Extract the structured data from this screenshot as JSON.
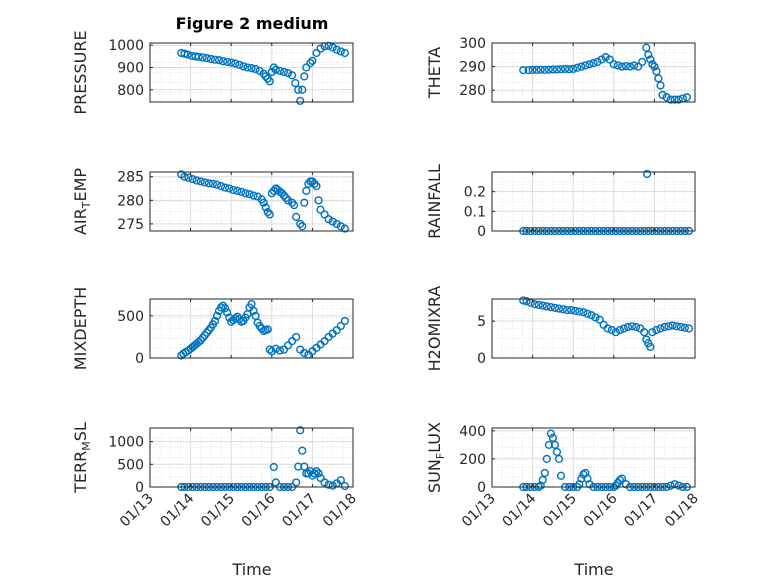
{
  "figure": {
    "title": "Figure 2 medium",
    "x_axis_label": "Time",
    "marker_color": "#0072BD"
  },
  "chart_data": [
    {
      "type": "scatter",
      "ylabel": "PRESSURE",
      "xticks": [
        "01/13",
        "01/14",
        "01/15",
        "01/16",
        "01/17",
        "01/18"
      ],
      "xlim": [
        13,
        18
      ],
      "ylim": [
        745,
        1010
      ],
      "yticks": [
        800,
        900,
        1000
      ],
      "grid": true,
      "x": [
        13.77,
        13.85,
        13.93,
        14.03,
        14.12,
        14.2,
        14.3,
        14.4,
        14.5,
        14.6,
        14.7,
        14.8,
        14.9,
        15.0,
        15.1,
        15.2,
        15.3,
        15.4,
        15.5,
        15.6,
        15.7,
        15.8,
        15.85,
        15.9,
        15.95,
        16.0,
        16.05,
        16.1,
        16.2,
        16.3,
        16.4,
        16.5,
        16.58,
        16.65,
        16.7,
        16.75,
        16.8,
        16.85,
        16.95,
        17.0,
        17.1,
        17.2,
        17.3,
        17.4,
        17.5,
        17.6,
        17.7,
        17.8
      ],
      "y": [
        965,
        962,
        958,
        952,
        950,
        948,
        945,
        942,
        938,
        935,
        933,
        928,
        925,
        922,
        918,
        912,
        905,
        900,
        897,
        893,
        885,
        872,
        860,
        850,
        838,
        880,
        900,
        890,
        885,
        880,
        875,
        865,
        830,
        800,
        750,
        800,
        860,
        900,
        920,
        930,
        965,
        985,
        995,
        997,
        990,
        980,
        972,
        965
      ]
    },
    {
      "type": "scatter",
      "ylabel": "THETA",
      "xticks": [
        "01/13",
        "01/14",
        "01/15",
        "01/16",
        "01/17",
        "01/18"
      ],
      "xlim": [
        13,
        18
      ],
      "ylim": [
        275,
        300
      ],
      "yticks": [
        280,
        290,
        300
      ],
      "grid": true,
      "x": [
        13.77,
        13.9,
        14.0,
        14.1,
        14.2,
        14.3,
        14.4,
        14.5,
        14.6,
        14.7,
        14.8,
        14.9,
        15.0,
        15.1,
        15.2,
        15.3,
        15.4,
        15.5,
        15.6,
        15.7,
        15.8,
        15.9,
        16.0,
        16.1,
        16.2,
        16.3,
        16.4,
        16.5,
        16.6,
        16.7,
        16.8,
        16.85,
        16.9,
        16.95,
        17.0,
        17.05,
        17.1,
        17.15,
        17.2,
        17.3,
        17.4,
        17.5,
        17.6,
        17.7,
        17.8
      ],
      "y": [
        288.5,
        288.5,
        288.6,
        288.6,
        288.7,
        288.6,
        288.7,
        288.8,
        288.8,
        288.9,
        289,
        288.9,
        289,
        289.5,
        290,
        290.5,
        291,
        291.5,
        292,
        293,
        294,
        293,
        291,
        290.5,
        290,
        290.2,
        290,
        290.5,
        290,
        292,
        298,
        295,
        293,
        291,
        290,
        288,
        285,
        282,
        278,
        277,
        276,
        276,
        276,
        276.5,
        277
      ]
    },
    {
      "type": "scatter",
      "ylabel": "AIR_TEMP",
      "xticks": [
        "01/13",
        "01/14",
        "01/15",
        "01/16",
        "01/17",
        "01/18"
      ],
      "xlim": [
        13,
        18
      ],
      "ylim": [
        273.5,
        286
      ],
      "yticks": [
        275,
        280,
        285
      ],
      "grid": true,
      "x": [
        13.77,
        13.85,
        13.95,
        14.05,
        14.15,
        14.25,
        14.35,
        14.45,
        14.55,
        14.65,
        14.75,
        14.85,
        14.95,
        15.05,
        15.15,
        15.25,
        15.35,
        15.45,
        15.55,
        15.65,
        15.75,
        15.8,
        15.85,
        15.9,
        15.95,
        16.0,
        16.05,
        16.1,
        16.15,
        16.2,
        16.25,
        16.3,
        16.35,
        16.4,
        16.5,
        16.55,
        16.6,
        16.7,
        16.75,
        16.8,
        16.85,
        16.9,
        16.95,
        17.0,
        17.05,
        17.1,
        17.15,
        17.2,
        17.3,
        17.4,
        17.5,
        17.6,
        17.7,
        17.8
      ],
      "y": [
        285.5,
        285,
        284.8,
        284.5,
        284.2,
        284.0,
        283.8,
        283.6,
        283.5,
        283.3,
        283.0,
        282.7,
        282.5,
        282.2,
        282.0,
        281.8,
        281.5,
        281.3,
        281.0,
        280.8,
        280.2,
        279.5,
        278.5,
        277.5,
        277.0,
        281.5,
        282.0,
        282.5,
        282.2,
        281.8,
        281.5,
        281.0,
        280.5,
        280.0,
        279.5,
        279.0,
        276.5,
        275.0,
        274.5,
        279.5,
        282.0,
        283.5,
        284.0,
        284.0,
        283.5,
        283.0,
        280.0,
        278.0,
        277.0,
        276.0,
        275.5,
        275.0,
        274.5,
        274.0
      ]
    },
    {
      "type": "scatter",
      "ylabel": "RAINFALL",
      "xticks": [
        "01/13",
        "01/14",
        "01/15",
        "01/16",
        "01/17",
        "01/18"
      ],
      "xlim": [
        13,
        18
      ],
      "ylim": [
        0,
        0.3
      ],
      "yticks": [
        0,
        0.1,
        0.2
      ],
      "grid": true,
      "x": [
        13.77,
        13.85,
        13.95,
        14.05,
        14.15,
        14.25,
        14.35,
        14.45,
        14.55,
        14.65,
        14.75,
        14.85,
        14.95,
        15.05,
        15.15,
        15.25,
        15.35,
        15.45,
        15.55,
        15.65,
        15.75,
        15.85,
        15.95,
        16.05,
        16.15,
        16.25,
        16.35,
        16.45,
        16.55,
        16.65,
        16.75,
        16.85,
        16.95,
        17.05,
        17.15,
        17.25,
        17.35,
        17.45,
        17.55,
        17.65,
        17.75,
        17.85,
        16.82
      ],
      "y": [
        0,
        0,
        0,
        0,
        0,
        0,
        0,
        0,
        0,
        0,
        0,
        0,
        0,
        0,
        0,
        0,
        0,
        0,
        0,
        0,
        0,
        0,
        0,
        0,
        0,
        0,
        0,
        0,
        0,
        0,
        0,
        0,
        0,
        0,
        0,
        0,
        0,
        0,
        0,
        0,
        0,
        0,
        0.29
      ]
    },
    {
      "type": "scatter",
      "ylabel": "MIXDEPTH",
      "xticks": [
        "01/13",
        "01/14",
        "01/15",
        "01/16",
        "01/17",
        "01/18"
      ],
      "xlim": [
        13,
        18
      ],
      "ylim": [
        0,
        700
      ],
      "yticks": [
        0,
        500
      ],
      "grid": true,
      "x": [
        13.77,
        13.82,
        13.88,
        13.95,
        14.0,
        14.05,
        14.1,
        14.15,
        14.2,
        14.25,
        14.3,
        14.35,
        14.4,
        14.45,
        14.5,
        14.55,
        14.6,
        14.65,
        14.7,
        14.75,
        14.8,
        14.85,
        14.9,
        14.95,
        15.0,
        15.05,
        15.1,
        15.15,
        15.2,
        15.25,
        15.3,
        15.35,
        15.4,
        15.45,
        15.5,
        15.55,
        15.6,
        15.65,
        15.7,
        15.75,
        15.8,
        15.85,
        15.9,
        15.95,
        16.0,
        16.1,
        16.2,
        16.3,
        16.4,
        16.5,
        16.6,
        16.7,
        16.8,
        16.9,
        17.0,
        17.1,
        17.2,
        17.3,
        17.4,
        17.5,
        17.6,
        17.7,
        17.8
      ],
      "y": [
        30,
        50,
        70,
        90,
        110,
        130,
        150,
        170,
        190,
        210,
        240,
        270,
        300,
        330,
        360,
        400,
        440,
        500,
        560,
        600,
        620,
        590,
        540,
        480,
        430,
        450,
        470,
        490,
        460,
        430,
        440,
        480,
        520,
        600,
        640,
        560,
        500,
        420,
        380,
        350,
        320,
        330,
        340,
        100,
        80,
        110,
        90,
        100,
        150,
        200,
        250,
        100,
        60,
        40,
        80,
        120,
        160,
        200,
        250,
        290,
        330,
        380,
        440
      ]
    },
    {
      "type": "scatter",
      "ylabel": "H2OMIXRA",
      "xticks": [
        "01/13",
        "01/14",
        "01/15",
        "01/16",
        "01/17",
        "01/18"
      ],
      "xlim": [
        13,
        18
      ],
      "ylim": [
        0,
        8
      ],
      "yticks": [
        0,
        5
      ],
      "grid": true,
      "x": [
        13.77,
        13.85,
        13.95,
        14.05,
        14.15,
        14.25,
        14.35,
        14.45,
        14.55,
        14.65,
        14.75,
        14.85,
        14.95,
        15.05,
        15.15,
        15.25,
        15.35,
        15.45,
        15.55,
        15.65,
        15.75,
        15.85,
        15.95,
        16.05,
        16.15,
        16.25,
        16.35,
        16.45,
        16.55,
        16.65,
        16.75,
        16.8,
        16.85,
        16.9,
        16.95,
        17.05,
        17.15,
        17.25,
        17.35,
        17.45,
        17.55,
        17.65,
        17.75,
        17.85
      ],
      "y": [
        7.8,
        7.7,
        7.5,
        7.3,
        7.2,
        7.1,
        7.0,
        6.9,
        6.8,
        6.7,
        6.6,
        6.5,
        6.5,
        6.4,
        6.3,
        6.2,
        6.0,
        5.8,
        5.5,
        5.2,
        4.5,
        4.0,
        3.8,
        3.5,
        3.8,
        4.0,
        4.2,
        4.3,
        4.2,
        4.0,
        3.5,
        2.5,
        2.0,
        1.5,
        3.5,
        3.8,
        4.0,
        4.2,
        4.3,
        4.4,
        4.3,
        4.2,
        4.1,
        4.0
      ]
    },
    {
      "type": "scatter",
      "ylabel": "TERR_MSL",
      "xticks": [
        "01/13",
        "01/14",
        "01/15",
        "01/16",
        "01/17",
        "01/18"
      ],
      "xlim": [
        13,
        18
      ],
      "ylim": [
        0,
        1300
      ],
      "yticks": [
        0,
        500,
        1000
      ],
      "grid": true,
      "x": [
        13.77,
        13.85,
        13.95,
        14.05,
        14.15,
        14.25,
        14.35,
        14.45,
        14.55,
        14.65,
        14.75,
        14.85,
        14.95,
        15.05,
        15.15,
        15.25,
        15.35,
        15.45,
        15.55,
        15.65,
        15.75,
        15.85,
        15.95,
        16.05,
        16.1,
        16.2,
        16.3,
        16.4,
        16.5,
        16.6,
        16.65,
        16.7,
        16.75,
        16.8,
        16.85,
        16.9,
        16.95,
        17.0,
        17.05,
        17.1,
        17.15,
        17.2,
        17.3,
        17.4,
        17.5,
        17.6,
        17.7,
        17.8
      ],
      "y": [
        0,
        0,
        0,
        0,
        0,
        0,
        0,
        0,
        0,
        0,
        0,
        0,
        0,
        0,
        0,
        0,
        0,
        0,
        0,
        0,
        0,
        0,
        0,
        440,
        100,
        0,
        0,
        0,
        0,
        100,
        450,
        1250,
        800,
        450,
        300,
        300,
        350,
        250,
        300,
        350,
        300,
        200,
        100,
        50,
        30,
        80,
        150,
        20
      ]
    },
    {
      "type": "scatter",
      "ylabel": "SUN_FLUX",
      "xticks": [
        "01/13",
        "01/14",
        "01/15",
        "01/16",
        "01/17",
        "01/18"
      ],
      "xlim": [
        13,
        18
      ],
      "ylim": [
        0,
        420
      ],
      "yticks": [
        0,
        200,
        400
      ],
      "grid": true,
      "x": [
        13.77,
        13.85,
        13.95,
        14.05,
        14.15,
        14.2,
        14.25,
        14.3,
        14.35,
        14.4,
        14.45,
        14.5,
        14.55,
        14.6,
        14.65,
        14.7,
        14.8,
        14.9,
        15.0,
        15.1,
        15.15,
        15.2,
        15.25,
        15.3,
        15.35,
        15.4,
        15.5,
        15.6,
        15.7,
        15.8,
        15.9,
        16.0,
        16.05,
        16.1,
        16.15,
        16.2,
        16.3,
        16.4,
        16.5,
        16.6,
        16.7,
        16.8,
        16.9,
        17.0,
        17.1,
        17.2,
        17.3,
        17.4,
        17.5,
        17.6,
        17.7,
        17.8
      ],
      "y": [
        0,
        0,
        0,
        0,
        0,
        10,
        50,
        100,
        200,
        300,
        380,
        350,
        300,
        250,
        200,
        80,
        0,
        0,
        0,
        0,
        20,
        60,
        90,
        100,
        60,
        20,
        0,
        0,
        0,
        0,
        0,
        0,
        10,
        30,
        50,
        60,
        20,
        0,
        0,
        0,
        0,
        0,
        0,
        0,
        0,
        0,
        0,
        10,
        20,
        10,
        0,
        0
      ]
    }
  ]
}
